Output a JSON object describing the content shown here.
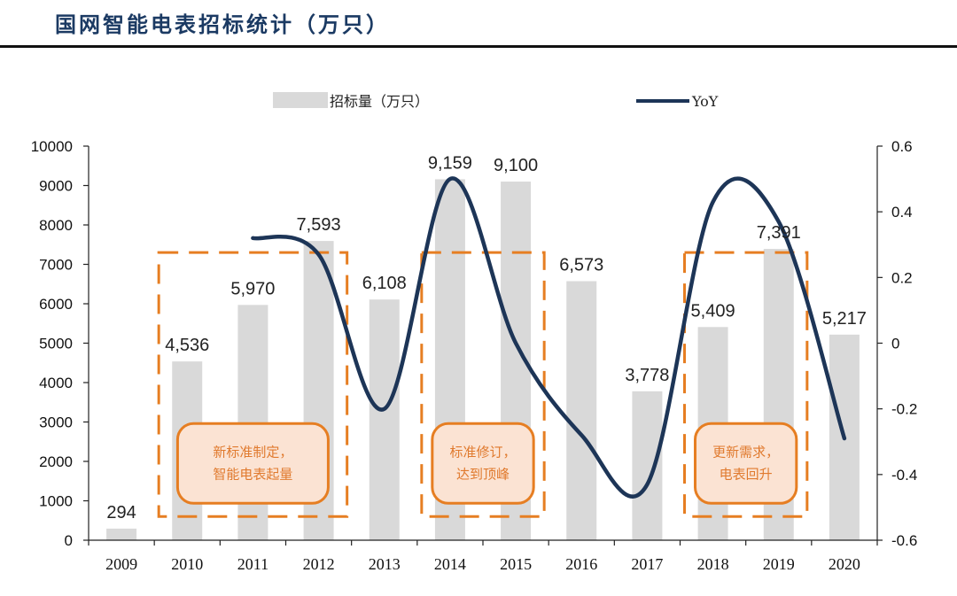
{
  "page": {
    "title": "国网智能电表招标统计（万只）"
  },
  "colors": {
    "bar": "#d9d9d9",
    "line": "#1d3557",
    "accent": "#e67e22",
    "callout_fill": "#fbe3d3",
    "title": "#1b3a63"
  },
  "chart_data": {
    "type": "bar",
    "title": "",
    "categories": [
      "2009",
      "2010",
      "2011",
      "2012",
      "2013",
      "2014",
      "2015",
      "2016",
      "2017",
      "2018",
      "2019",
      "2020"
    ],
    "series": [
      {
        "name": "招标量（万只）",
        "type": "bar",
        "axis": "left",
        "values": [
          294,
          4536,
          5970,
          7593,
          6108,
          9159,
          9100,
          6573,
          3778,
          5409,
          7391,
          5217
        ],
        "labels": [
          "294",
          "4,536",
          "5,970",
          "7,593",
          "6,108",
          "9,159",
          "9,100",
          "6,573",
          "3,778",
          "5,409",
          "7,391",
          "5,217"
        ]
      },
      {
        "name": "YoY",
        "type": "line",
        "axis": "right",
        "x": [
          "2011",
          "2012",
          "2013",
          "2014",
          "2015",
          "2016",
          "2017",
          "2018",
          "2019",
          "2020"
        ],
        "values": [
          0.32,
          0.27,
          -0.2,
          0.5,
          0.0,
          -0.28,
          -0.43,
          0.43,
          0.37,
          -0.29
        ]
      }
    ],
    "y_left": {
      "min": 0,
      "max": 10000,
      "ticks": [
        "0",
        "1000",
        "2000",
        "3000",
        "4000",
        "5000",
        "6000",
        "7000",
        "8000",
        "9000",
        "10000"
      ]
    },
    "y_right": {
      "min": -0.6,
      "max": 0.6,
      "ticks": [
        "-0.6",
        "-0.4",
        "-0.2",
        "0",
        "0.2",
        "0.4",
        "0.6"
      ]
    },
    "legend_position": "top",
    "grid": false,
    "annotations": [
      {
        "from": "2010",
        "to": "2012",
        "lines": [
          "新标准制定，",
          "智能电表起量"
        ]
      },
      {
        "from": "2014",
        "to": "2015",
        "lines": [
          "标准修订，",
          "达到顶峰"
        ]
      },
      {
        "from": "2018",
        "to": "2019",
        "lines": [
          "更新需求，",
          "电表回升"
        ]
      }
    ]
  }
}
